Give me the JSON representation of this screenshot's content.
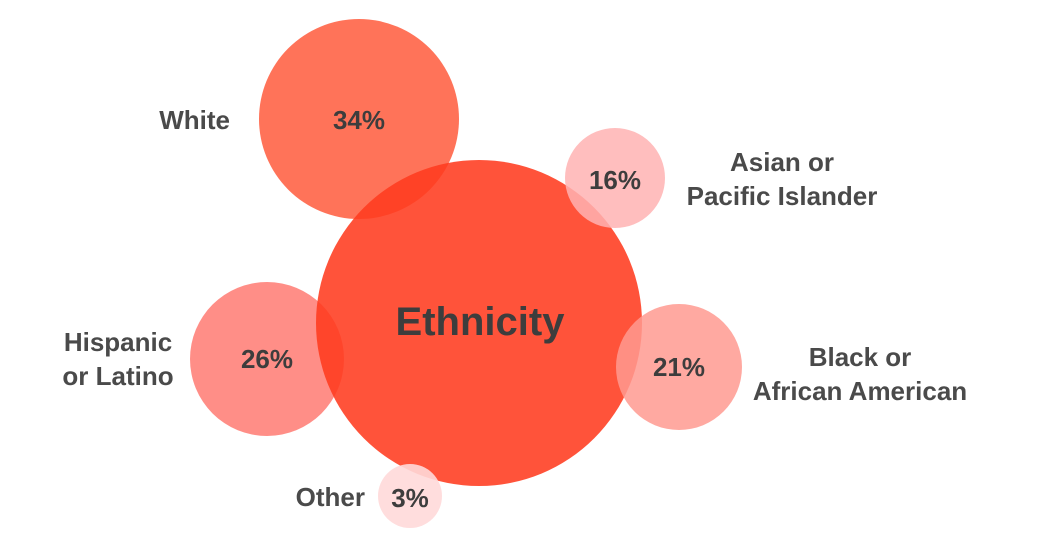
{
  "chart_data": {
    "type": "bubble",
    "center": {
      "label": "Ethnicity",
      "color": "#ff3b1f"
    },
    "series": [
      {
        "category": "White",
        "percent_label": "34%",
        "value": 34,
        "color": "#ff5a3c"
      },
      {
        "category_lines": [
          "Asian or",
          "Pacific Islander"
        ],
        "percent_label": "16%",
        "value": 16,
        "color": "#ffb3b3"
      },
      {
        "category_lines": [
          "Hispanic",
          "or Latino"
        ],
        "percent_label": "26%",
        "value": 26,
        "color": "#ff7a72"
      },
      {
        "category_lines": [
          "Black or",
          "African American"
        ],
        "percent_label": "21%",
        "value": 21,
        "color": "#ff9a90"
      },
      {
        "category": "Other",
        "percent_label": "3%",
        "value": 3,
        "color": "#ffd9d9"
      }
    ]
  }
}
